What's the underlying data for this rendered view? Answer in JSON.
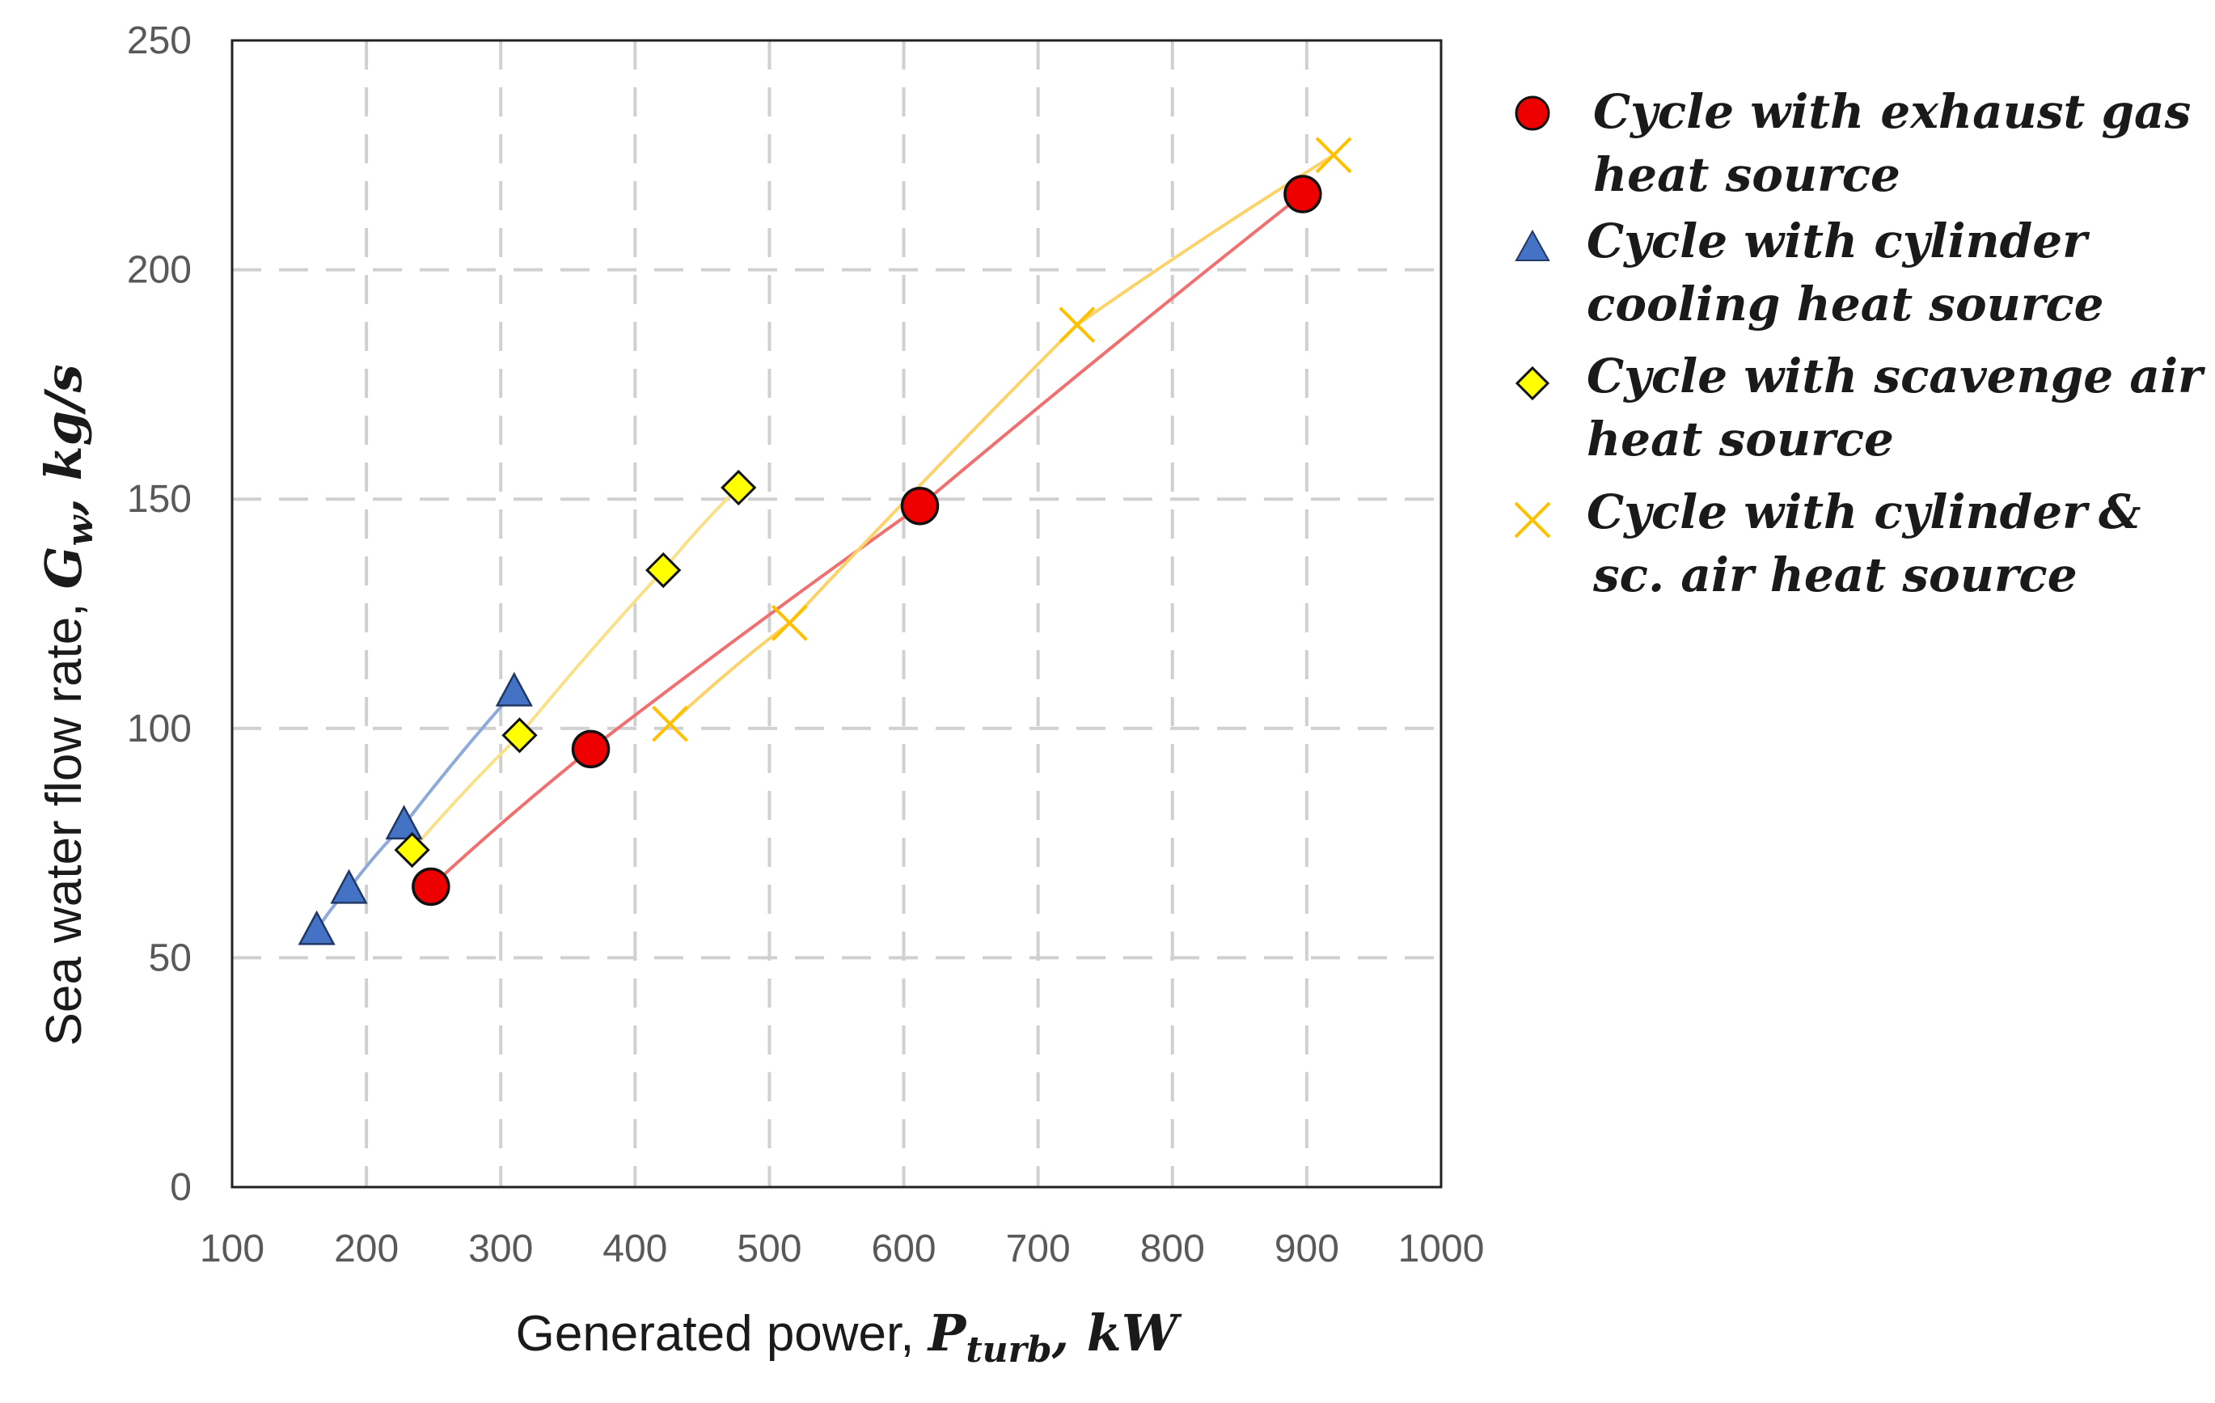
{
  "chart_data": {
    "type": "scatter",
    "title": "",
    "xlabel": {
      "prefix": "Generated power, ",
      "math_main": "P",
      "math_sub": "turb",
      "math_suffix": ", kW"
    },
    "ylabel": {
      "prefix": "Sea water flow rate, ",
      "math_main": "G",
      "math_sub": "w",
      "math_suffix": ", kg/s"
    },
    "xlim": [
      100,
      1000
    ],
    "ylim": [
      0,
      250
    ],
    "xticks": [
      "100",
      "200",
      "300",
      "400",
      "500",
      "600",
      "700",
      "800",
      "900",
      "1000"
    ],
    "yticks": [
      "0",
      "50",
      "100",
      "150",
      "200",
      "250"
    ],
    "grid": "dashed",
    "legend_position": "right",
    "series": [
      {
        "name": "Cycle with exhaust gas heat source",
        "legend_lines": [
          "Cycle with exhaust gas",
          "heat source"
        ],
        "marker": "circle",
        "marker_color": "#ee0000",
        "line_color": "#f07070",
        "x": [
          248,
          367,
          612,
          897
        ],
        "y": [
          65.5,
          95.5,
          148.5,
          216.5
        ]
      },
      {
        "name": "Cycle with cylinder cooling heat source",
        "legend_lines": [
          "Cycle with cylinder",
          "cooling heat source"
        ],
        "marker": "triangle",
        "marker_color": "#4472c4",
        "line_color": "#8eaadb",
        "x": [
          163,
          187,
          228,
          310
        ],
        "y": [
          56,
          65,
          79,
          108
        ]
      },
      {
        "name": "Cycle with scavenge air heat source",
        "legend_lines": [
          "Cycle with scavenge air",
          "heat source"
        ],
        "marker": "diamond",
        "marker_color": "#ffff00",
        "line_color": "#fbe08a",
        "x": [
          234,
          314,
          421,
          477
        ],
        "y": [
          73.5,
          98.5,
          134.5,
          152.5
        ]
      },
      {
        "name": "Cycle with cylinder & sc. air heat source",
        "legend_lines": [
          "Cycle with cylinder",
          "&",
          "sc. air heat source"
        ],
        "marker": "x",
        "marker_color": "#ffc000",
        "line_color": "#fbd36a",
        "x": [
          426,
          515,
          729,
          920
        ],
        "y": [
          101,
          123,
          188,
          225
        ]
      }
    ]
  }
}
